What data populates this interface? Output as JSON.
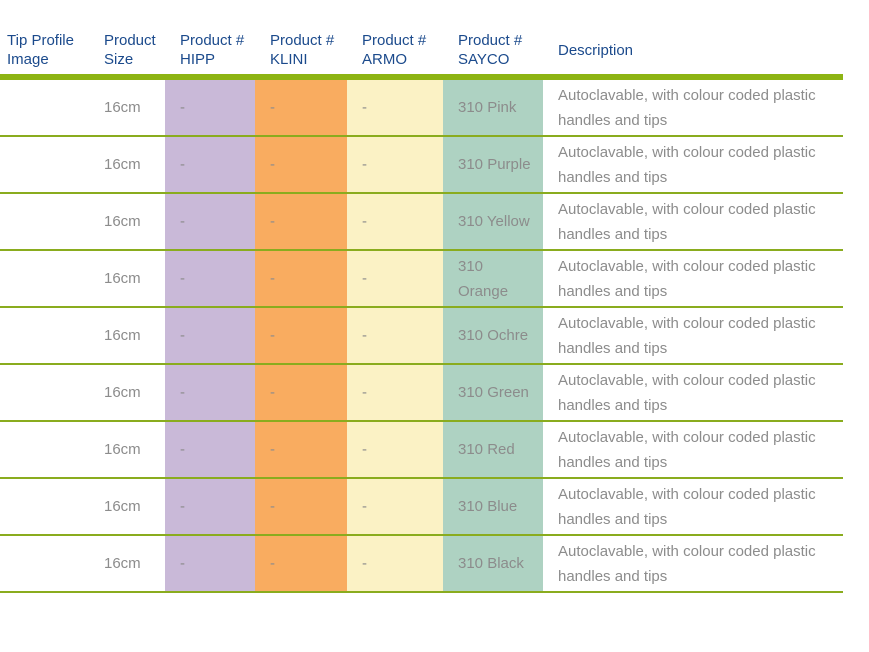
{
  "theme": {
    "page_bg": "#ffffff",
    "header_text": "#1b4a8c",
    "body_text": "#8c8c8c",
    "rule_thick": "#8db414",
    "rule_thin": "#8aac1e",
    "hipp_bg": "#c9b9d8",
    "klini_bg": "#f9ac60",
    "armo_bg": "#fbf2c5",
    "sayco_bg": "#aed2c2"
  },
  "table": {
    "columns": [
      {
        "key": "image",
        "label": "Tip Profile Image"
      },
      {
        "key": "size",
        "label": "Product Size"
      },
      {
        "key": "hipp",
        "label": "Product # HIPP"
      },
      {
        "key": "klini",
        "label": "Product # KLINI"
      },
      {
        "key": "armo",
        "label": "Product # ARMO"
      },
      {
        "key": "sayco",
        "label": "Product # SAYCO"
      },
      {
        "key": "description",
        "label": "Description"
      }
    ],
    "rows": [
      {
        "size": "16cm",
        "hipp": "-",
        "klini": "-",
        "armo": "-",
        "sayco": "310 Pink",
        "description": "Autoclavable, with colour coded plastic handles and tips"
      },
      {
        "size": "16cm",
        "hipp": "-",
        "klini": "-",
        "armo": "-",
        "sayco": "310 Purple",
        "description": "Autoclavable, with colour coded plastic handles and tips"
      },
      {
        "size": "16cm",
        "hipp": "-",
        "klini": "-",
        "armo": "-",
        "sayco": "310 Yellow",
        "description": "Autoclavable, with colour coded plastic handles and tips"
      },
      {
        "size": "16cm",
        "hipp": "-",
        "klini": "-",
        "armo": "-",
        "sayco": "310 Orange",
        "description": "Autoclavable, with colour coded plastic handles and tips"
      },
      {
        "size": "16cm",
        "hipp": "-",
        "klini": "-",
        "armo": "-",
        "sayco": "310 Ochre",
        "description": "Autoclavable, with colour coded plastic handles and tips"
      },
      {
        "size": "16cm",
        "hipp": "-",
        "klini": "-",
        "armo": "-",
        "sayco": "310 Green",
        "description": "Autoclavable, with colour coded plastic handles and tips"
      },
      {
        "size": "16cm",
        "hipp": "-",
        "klini": "-",
        "armo": "-",
        "sayco": "310 Red",
        "description": "Autoclavable, with colour coded plastic handles and tips"
      },
      {
        "size": "16cm",
        "hipp": "-",
        "klini": "-",
        "armo": "-",
        "sayco": "310 Blue",
        "description": "Autoclavable, with colour coded plastic handles and tips"
      },
      {
        "size": "16cm",
        "hipp": "-",
        "klini": "-",
        "armo": "-",
        "sayco": "310 Black",
        "description": "Autoclavable, with colour coded plastic handles and tips"
      }
    ]
  }
}
